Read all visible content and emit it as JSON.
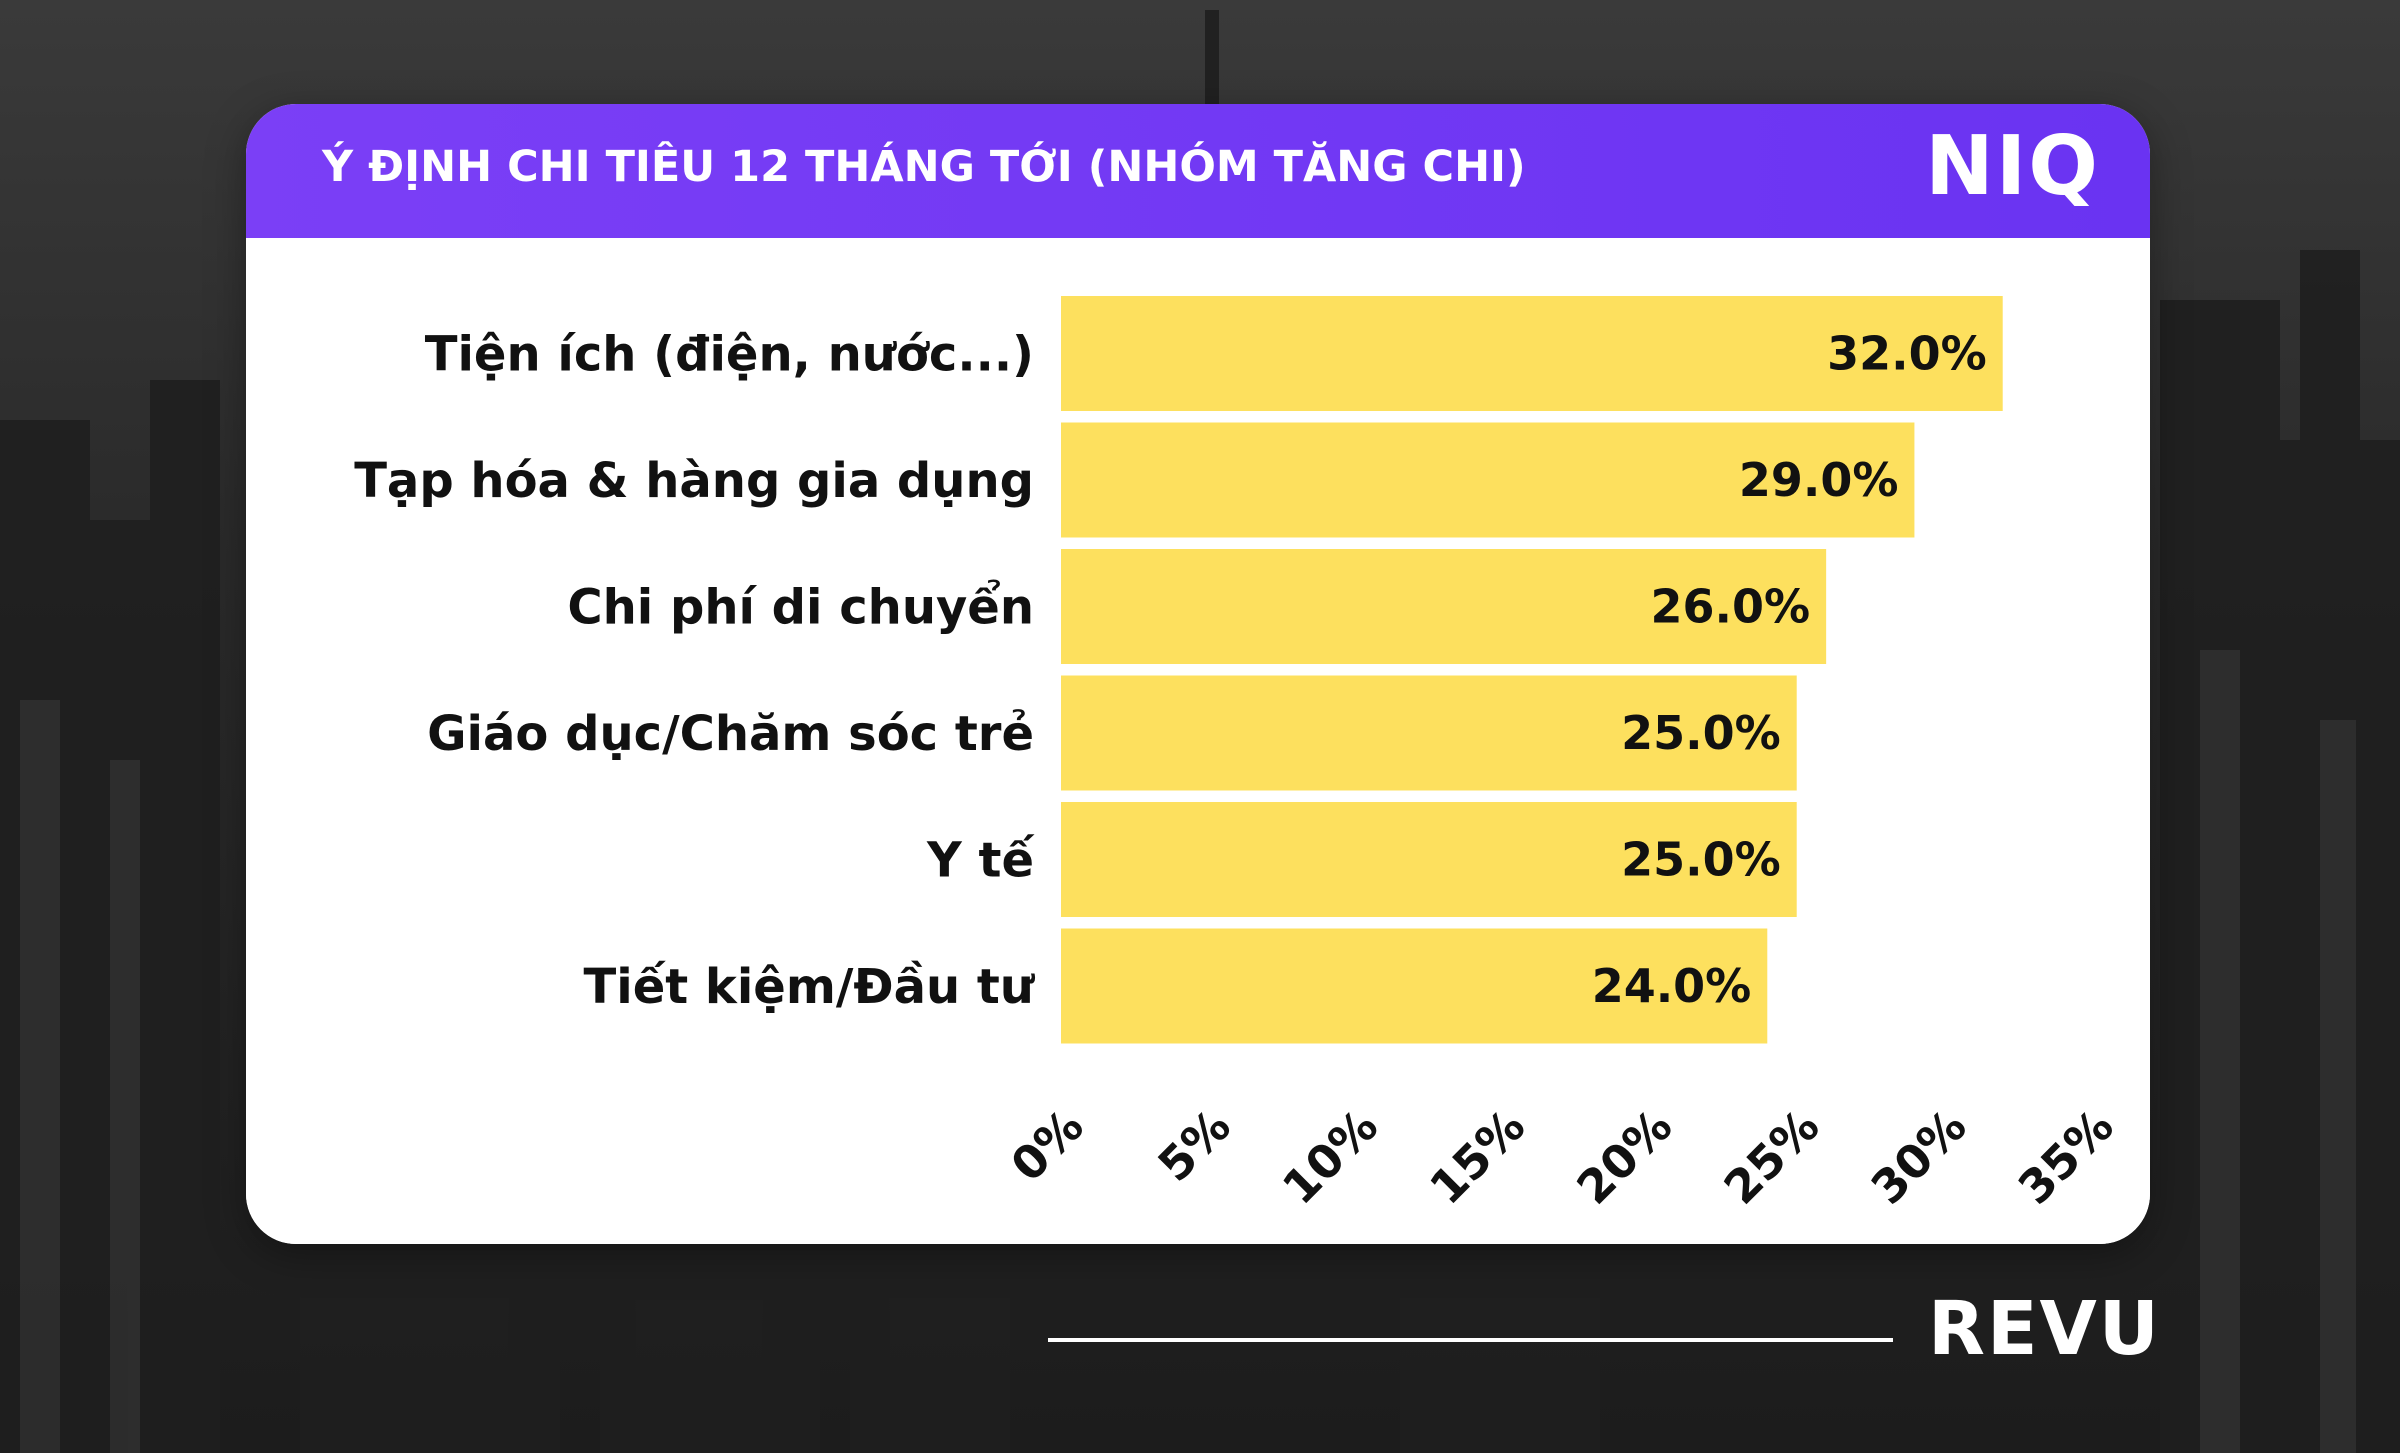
{
  "header": {
    "title": "Ý ĐỊNH CHI TIÊU 12 THÁNG TỚI (NHÓM TĂNG CHI)",
    "logo": "NIQ"
  },
  "footer": {
    "logo": "REVU"
  },
  "colors": {
    "header": "#6f37f4",
    "bar": "#fde05e",
    "text": "#111111",
    "background": "#262626"
  },
  "chart_data": {
    "type": "bar",
    "orientation": "horizontal",
    "categories": [
      "Tiện ích (điện, nước...)",
      "Tạp hóa & hàng gia dụng",
      "Chi phí di chuyển",
      "Giáo dục/Chăm sóc trẻ",
      "Y tế",
      "Tiết kiệm/Đầu tư"
    ],
    "values": [
      32.0,
      29.0,
      26.0,
      25.0,
      25.0,
      24.0
    ],
    "value_labels": [
      "32.0%",
      "29.0%",
      "26.0%",
      "25.0%",
      "25.0%",
      "24.0%"
    ],
    "xlim": [
      0,
      35
    ],
    "xticks": [
      0,
      5,
      10,
      15,
      20,
      25,
      30,
      35
    ],
    "xtick_labels": [
      "0%",
      "5%",
      "10%",
      "15%",
      "20%",
      "25%",
      "30%",
      "35%"
    ],
    "grid": false,
    "legend": "none"
  }
}
